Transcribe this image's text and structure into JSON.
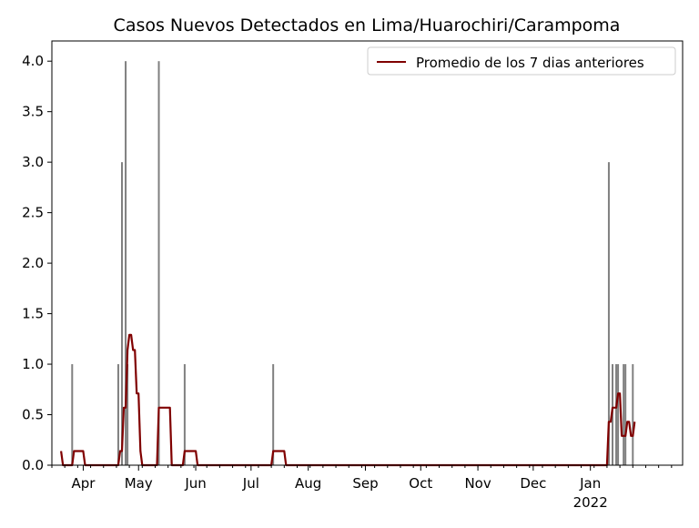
{
  "chart_data": {
    "type": "bar",
    "title": "Casos Nuevos Detectados en Lima/Huarochiri/Carampoma",
    "xlabel": "",
    "ylabel": "",
    "ylim": [
      0,
      4.2
    ],
    "y_ticks": [
      "0.0",
      "0.5",
      "1.0",
      "1.5",
      "2.0",
      "2.5",
      "3.0",
      "3.5",
      "4.0"
    ],
    "x_range_days": [
      0,
      342
    ],
    "x_ticks": [
      {
        "day": 17,
        "label": "Apr"
      },
      {
        "day": 47,
        "label": "May"
      },
      {
        "day": 78,
        "label": "Jun"
      },
      {
        "day": 108,
        "label": "Jul"
      },
      {
        "day": 139,
        "label": "Aug"
      },
      {
        "day": 170,
        "label": "Sep"
      },
      {
        "day": 200,
        "label": "Oct"
      },
      {
        "day": 231,
        "label": "Nov"
      },
      {
        "day": 261,
        "label": "Dec"
      },
      {
        "day": 292,
        "label": "Jan",
        "sublabel": "2022"
      }
    ],
    "series_bar": {
      "color": "#808080",
      "points": [
        [
          11,
          1
        ],
        [
          36,
          1
        ],
        [
          38,
          3
        ],
        [
          40,
          4
        ],
        [
          41,
          1
        ],
        [
          58,
          4
        ],
        [
          72,
          1
        ],
        [
          120,
          1
        ],
        [
          302,
          3
        ],
        [
          304,
          1
        ],
        [
          306,
          1
        ],
        [
          307,
          1
        ],
        [
          310,
          1
        ],
        [
          311,
          1
        ],
        [
          315,
          1
        ]
      ]
    },
    "series_line": {
      "name": "Promedio de los 7 dias anteriores",
      "color": "#800000",
      "points": [
        [
          5,
          0.14
        ],
        [
          6,
          0
        ],
        [
          11,
          0
        ],
        [
          12,
          0.14
        ],
        [
          17,
          0.14
        ],
        [
          18,
          0
        ],
        [
          36,
          0
        ],
        [
          37,
          0.14
        ],
        [
          38,
          0.14
        ],
        [
          39,
          0.57
        ],
        [
          40,
          0.57
        ],
        [
          41,
          1.14
        ],
        [
          42,
          1.29
        ],
        [
          43,
          1.29
        ],
        [
          44,
          1.14
        ],
        [
          45,
          1.14
        ],
        [
          46,
          0.71
        ],
        [
          47,
          0.71
        ],
        [
          48,
          0.14
        ],
        [
          49,
          0
        ],
        [
          57,
          0
        ],
        [
          58,
          0.57
        ],
        [
          64,
          0.57
        ],
        [
          65,
          0
        ],
        [
          71,
          0
        ],
        [
          72,
          0.14
        ],
        [
          78,
          0.14
        ],
        [
          79,
          0
        ],
        [
          119,
          0
        ],
        [
          120,
          0.14
        ],
        [
          126,
          0.14
        ],
        [
          127,
          0
        ],
        [
          301,
          0
        ],
        [
          302,
          0.43
        ],
        [
          303,
          0.43
        ],
        [
          304,
          0.57
        ],
        [
          306,
          0.57
        ],
        [
          307,
          0.71
        ],
        [
          308,
          0.71
        ],
        [
          309,
          0.29
        ],
        [
          311,
          0.29
        ],
        [
          312,
          0.43
        ],
        [
          313,
          0.43
        ],
        [
          314,
          0.29
        ],
        [
          315,
          0.29
        ],
        [
          316,
          0.43
        ]
      ]
    },
    "legend_position": "upper right"
  }
}
